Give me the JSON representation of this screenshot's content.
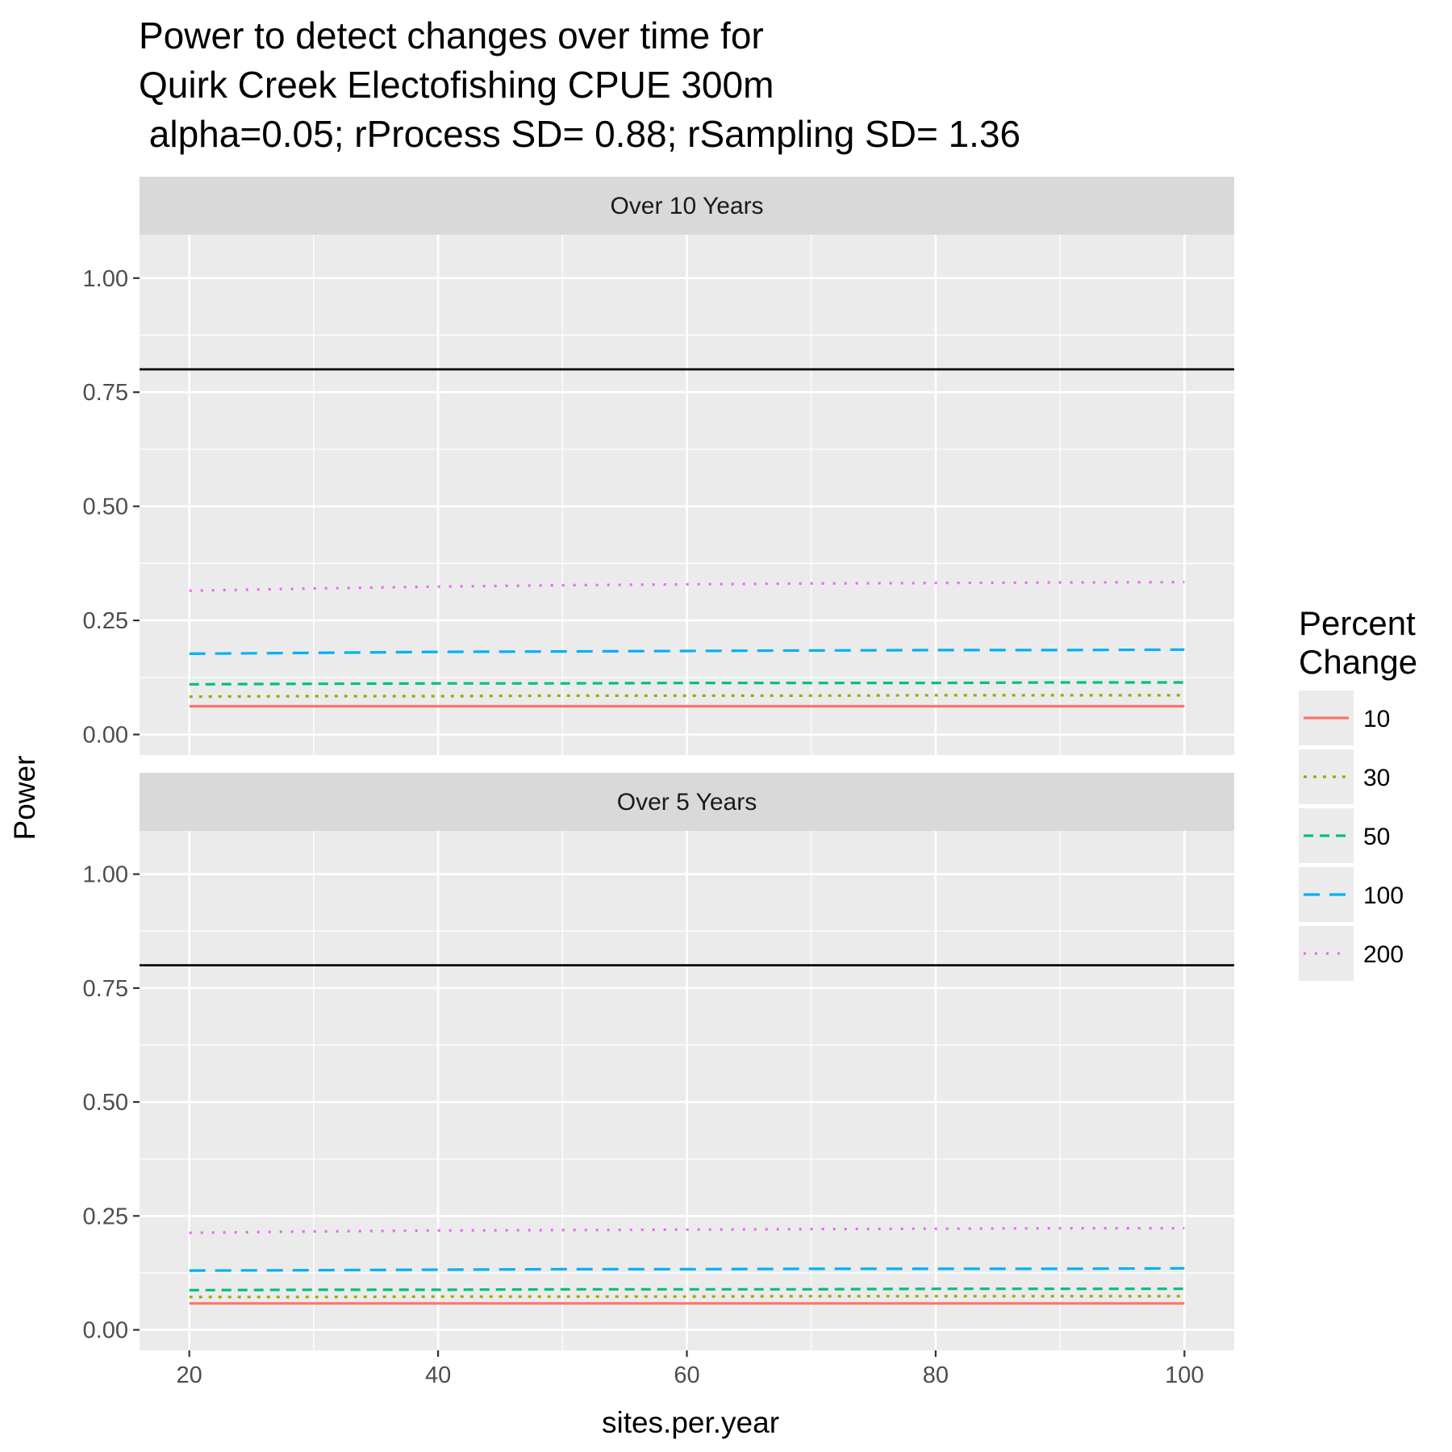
{
  "chart_data": {
    "type": "line",
    "title_lines": [
      "Power to detect changes over time for",
      "Quirk Creek Electofishing  CPUE 300m",
      " alpha=0.05; rProcess SD= 0.88; rSampling SD= 1.36"
    ],
    "xlabel": "sites.per.year",
    "ylabel": "Power",
    "xlim": [
      16,
      104
    ],
    "ylim": [
      -0.045,
      1.095
    ],
    "x_ticks": [
      "20",
      "40",
      "60",
      "80",
      "100"
    ],
    "x_tick_values": [
      20,
      40,
      60,
      80,
      100
    ],
    "x_minor": [
      30,
      50,
      70,
      90
    ],
    "y_ticks": [
      "0.00",
      "0.25",
      "0.50",
      "0.75",
      "1.00"
    ],
    "y_tick_values": [
      0,
      0.25,
      0.5,
      0.75,
      1.0
    ],
    "y_minor": [
      0.125,
      0.375,
      0.625,
      0.875
    ],
    "reference_line": 0.8,
    "legend": {
      "title_lines": [
        "Percent",
        "Change"
      ],
      "placement": "right"
    },
    "x": [
      20,
      30,
      40,
      50,
      60,
      70,
      80,
      90,
      100
    ],
    "series_styles": [
      {
        "name": "10",
        "color": "#F8766D",
        "dash": "solid"
      },
      {
        "name": "30",
        "color": "#A3A500",
        "dash": "dotted-short"
      },
      {
        "name": "50",
        "color": "#00BF7D",
        "dash": "dashed"
      },
      {
        "name": "100",
        "color": "#00B0F6",
        "dash": "longdash"
      },
      {
        "name": "200",
        "color": "#E76BF3",
        "dash": "dotted"
      }
    ],
    "panels": [
      {
        "strip": "Over 10 Years",
        "series": [
          {
            "name": "10",
            "values": [
              0.062,
              0.062,
              0.062,
              0.062,
              0.062,
              0.062,
              0.062,
              0.062,
              0.062
            ]
          },
          {
            "name": "30",
            "values": [
              0.083,
              0.084,
              0.084,
              0.085,
              0.085,
              0.085,
              0.086,
              0.086,
              0.086
            ]
          },
          {
            "name": "50",
            "values": [
              0.11,
              0.111,
              0.112,
              0.112,
              0.113,
              0.113,
              0.113,
              0.114,
              0.114
            ]
          },
          {
            "name": "100",
            "values": [
              0.177,
              0.179,
              0.181,
              0.182,
              0.183,
              0.184,
              0.185,
              0.185,
              0.186
            ]
          },
          {
            "name": "200",
            "values": [
              0.315,
              0.32,
              0.324,
              0.327,
              0.329,
              0.331,
              0.332,
              0.333,
              0.334
            ]
          }
        ]
      },
      {
        "strip": "Over 5 Years",
        "series": [
          {
            "name": "10",
            "values": [
              0.058,
              0.058,
              0.058,
              0.058,
              0.058,
              0.058,
              0.058,
              0.058,
              0.058
            ]
          },
          {
            "name": "30",
            "values": [
              0.072,
              0.072,
              0.073,
              0.073,
              0.073,
              0.074,
              0.074,
              0.074,
              0.074
            ]
          },
          {
            "name": "50",
            "values": [
              0.087,
              0.088,
              0.088,
              0.089,
              0.089,
              0.089,
              0.09,
              0.09,
              0.09
            ]
          },
          {
            "name": "100",
            "values": [
              0.13,
              0.131,
              0.132,
              0.133,
              0.133,
              0.134,
              0.134,
              0.134,
              0.135
            ]
          },
          {
            "name": "200",
            "values": [
              0.213,
              0.216,
              0.218,
              0.219,
              0.22,
              0.221,
              0.222,
              0.223,
              0.223
            ]
          }
        ]
      }
    ]
  }
}
